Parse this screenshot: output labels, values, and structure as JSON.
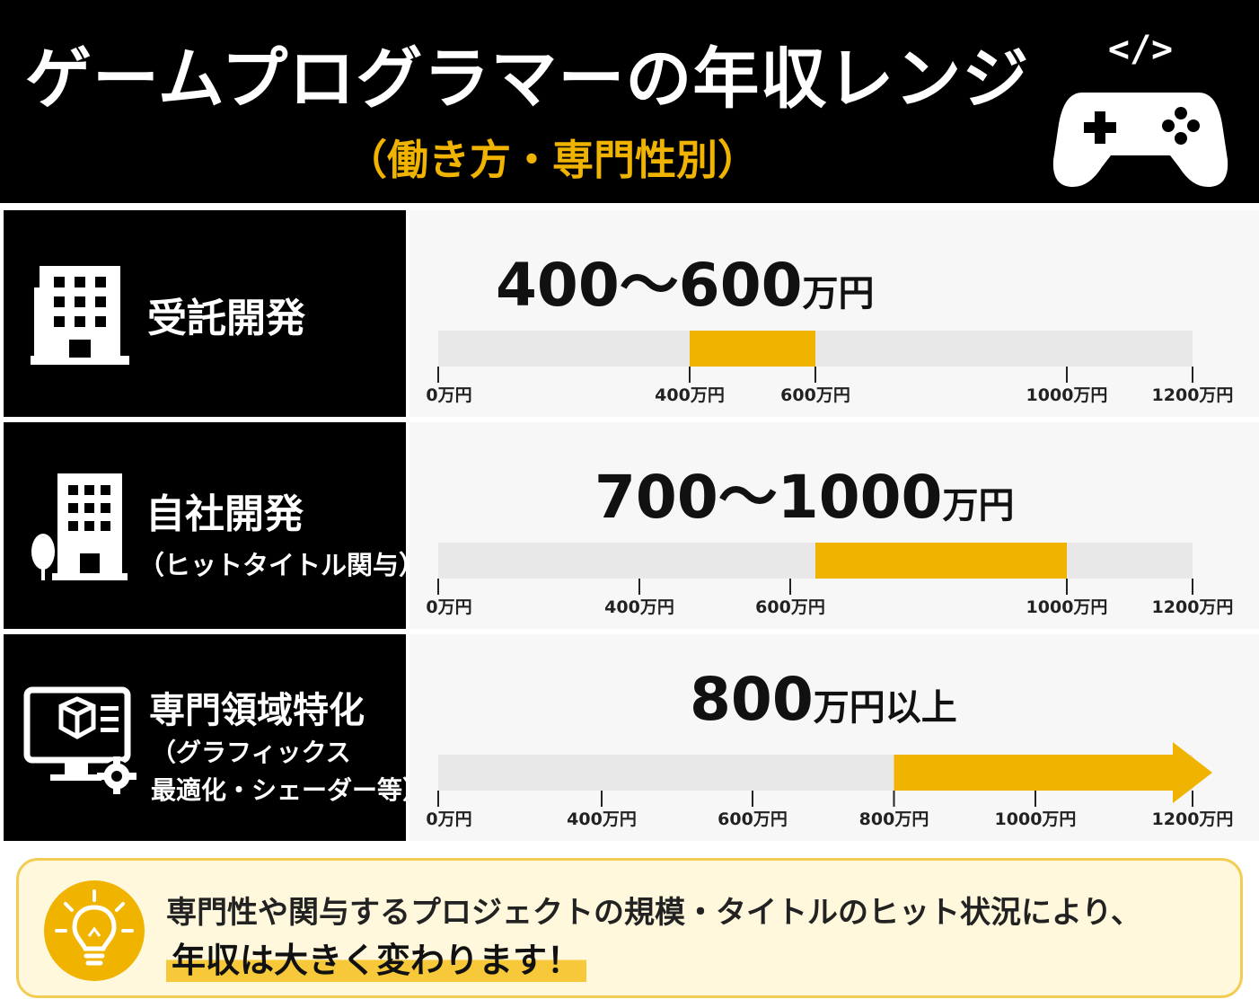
{
  "header": {
    "title": "ゲームプログラマーの年収レンジ",
    "subtitle": "（働き方・専門性別）",
    "code_symbol": "</>"
  },
  "chart_data": [
    {
      "type": "bar",
      "category": "受託開発",
      "category_note": "",
      "range_text": {
        "value": "400～600",
        "unit": "万円"
      },
      "range": [
        400,
        600
      ],
      "open_ended": false,
      "xlim": [
        0,
        1200
      ],
      "ticks": [
        {
          "value": 0,
          "label": "0万円"
        },
        {
          "value": 400,
          "label": "400万円"
        },
        {
          "value": 600,
          "label": "600万円"
        },
        {
          "value": 1000,
          "label": "1000万円"
        },
        {
          "value": 1200,
          "label": "1200万円"
        }
      ]
    },
    {
      "type": "bar",
      "category": "自社開発",
      "category_note": "（ヒットタイトル関与）",
      "range_text": {
        "value": "700～1000",
        "unit": "万円"
      },
      "range": [
        600,
        1000
      ],
      "open_ended": false,
      "xlim": [
        0,
        1200
      ],
      "ticks": [
        {
          "value": 0,
          "label": "0万円"
        },
        {
          "value": 320,
          "label": "400万円"
        },
        {
          "value": 560,
          "label": "600万円"
        },
        {
          "value": 1000,
          "label": "1000万円"
        },
        {
          "value": 1200,
          "label": "1200万円"
        }
      ]
    },
    {
      "type": "bar",
      "category": "専門領域特化",
      "category_note_lines": [
        "（グラフィックス",
        "最適化・シェーダー等）"
      ],
      "range_text": {
        "value": "800",
        "unit": "万円以上"
      },
      "range": [
        725,
        1200
      ],
      "open_ended": true,
      "xlim": [
        0,
        1200
      ],
      "ticks": [
        {
          "value": 0,
          "label": "0万円"
        },
        {
          "value": 260,
          "label": "400万円"
        },
        {
          "value": 500,
          "label": "600万円"
        },
        {
          "value": 725,
          "label": "800万円"
        },
        {
          "value": 950,
          "label": "1000万円"
        },
        {
          "value": 1200,
          "label": "1200万円"
        }
      ]
    }
  ],
  "note": {
    "line1": "専門性や関与するプロジェクトの規模・タイトルのヒット状況により、",
    "line2": "年収は大きく変わります！"
  },
  "colors": {
    "accent": "#f0b400",
    "track": "#e8e8e8",
    "panel": "#000000",
    "note_bg": "#fff8dc",
    "note_border": "#f2cd54"
  },
  "icons": [
    "game-controller-icon",
    "office-building-icon",
    "building-with-tree-icon",
    "monitor-gear-cube-icon",
    "light-bulb-icon"
  ]
}
